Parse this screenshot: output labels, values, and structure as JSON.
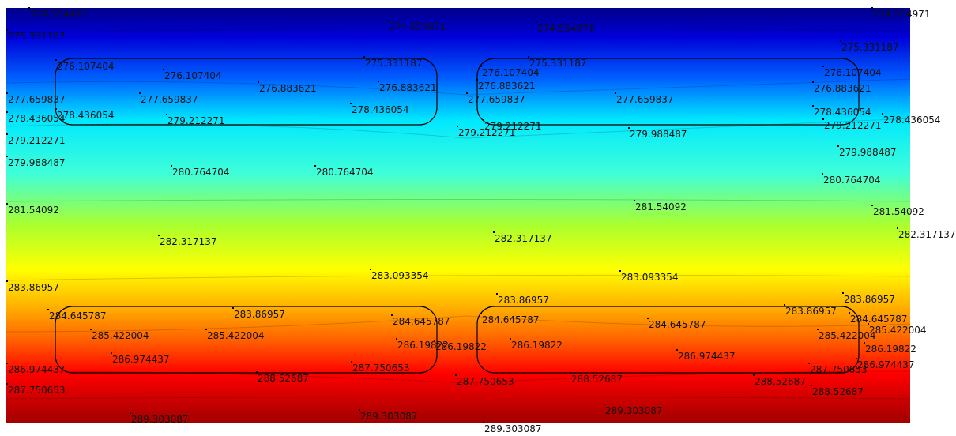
{
  "contour_plot": {
    "type": "temperature contour field",
    "colormap": [
      "#00008a",
      "#0000ff",
      "#00ffff",
      "#a8ff30",
      "#ffff00",
      "#ff7f00",
      "#ff0000",
      "#a00000"
    ],
    "value_range": [
      274.554971,
      289.303087
    ],
    "labels": [
      {
        "text": "274.554971"
      },
      {
        "text": "274.554971"
      },
      {
        "text": "274.554971"
      },
      {
        "text": "274.554971"
      },
      {
        "text": "275.331187"
      },
      {
        "text": "275.331187"
      },
      {
        "text": "275.331187"
      },
      {
        "text": "275.331187"
      },
      {
        "text": "276.107404"
      },
      {
        "text": "276.107404"
      },
      {
        "text": "276.107404"
      },
      {
        "text": "276.107404"
      },
      {
        "text": "276.883621"
      },
      {
        "text": "276.883621"
      },
      {
        "text": "276.883621"
      },
      {
        "text": "276.883621"
      },
      {
        "text": "277.659837"
      },
      {
        "text": "277.659837"
      },
      {
        "text": "277.659837"
      },
      {
        "text": "277.659837"
      },
      {
        "text": "278.436054"
      },
      {
        "text": "278.436054"
      },
      {
        "text": "278.436054"
      },
      {
        "text": "278.436054"
      },
      {
        "text": "278.436054"
      },
      {
        "text": "279.212271"
      },
      {
        "text": "279.212271"
      },
      {
        "text": "279.212271"
      },
      {
        "text": "279.212271"
      },
      {
        "text": "279.212271"
      },
      {
        "text": "279.988487"
      },
      {
        "text": "279.988487"
      },
      {
        "text": "279.988487"
      },
      {
        "text": "280.764704"
      },
      {
        "text": "280.764704"
      },
      {
        "text": "280.764704"
      },
      {
        "text": "281.54092"
      },
      {
        "text": "281.54092"
      },
      {
        "text": "281.54092"
      },
      {
        "text": "282.317137"
      },
      {
        "text": "282.317137"
      },
      {
        "text": "282.317137"
      },
      {
        "text": "283.093354"
      },
      {
        "text": "283.093354"
      },
      {
        "text": "283.86957"
      },
      {
        "text": "283.86957"
      },
      {
        "text": "283.86957"
      },
      {
        "text": "283.86957"
      },
      {
        "text": "283.86957"
      },
      {
        "text": "284.645787"
      },
      {
        "text": "284.645787"
      },
      {
        "text": "284.645787"
      },
      {
        "text": "284.645787"
      },
      {
        "text": "284.645787"
      },
      {
        "text": "285.422004"
      },
      {
        "text": "285.422004"
      },
      {
        "text": "285.422004"
      },
      {
        "text": "285.422004"
      },
      {
        "text": "286.19822"
      },
      {
        "text": "286.19822"
      },
      {
        "text": "286.19822"
      },
      {
        "text": "286.19822"
      },
      {
        "text": "286.974437"
      },
      {
        "text": "286.974437"
      },
      {
        "text": "286.974437"
      },
      {
        "text": "286.974437"
      },
      {
        "text": "287.750653"
      },
      {
        "text": "287.750653"
      },
      {
        "text": "287.750653"
      },
      {
        "text": "287.750653"
      },
      {
        "text": "288.52687"
      },
      {
        "text": "288.52687"
      },
      {
        "text": "288.52687"
      },
      {
        "text": "288.52687"
      },
      {
        "text": "289.303087"
      },
      {
        "text": "289.303087"
      },
      {
        "text": "289.303087"
      },
      {
        "text": "289.303087"
      }
    ]
  }
}
